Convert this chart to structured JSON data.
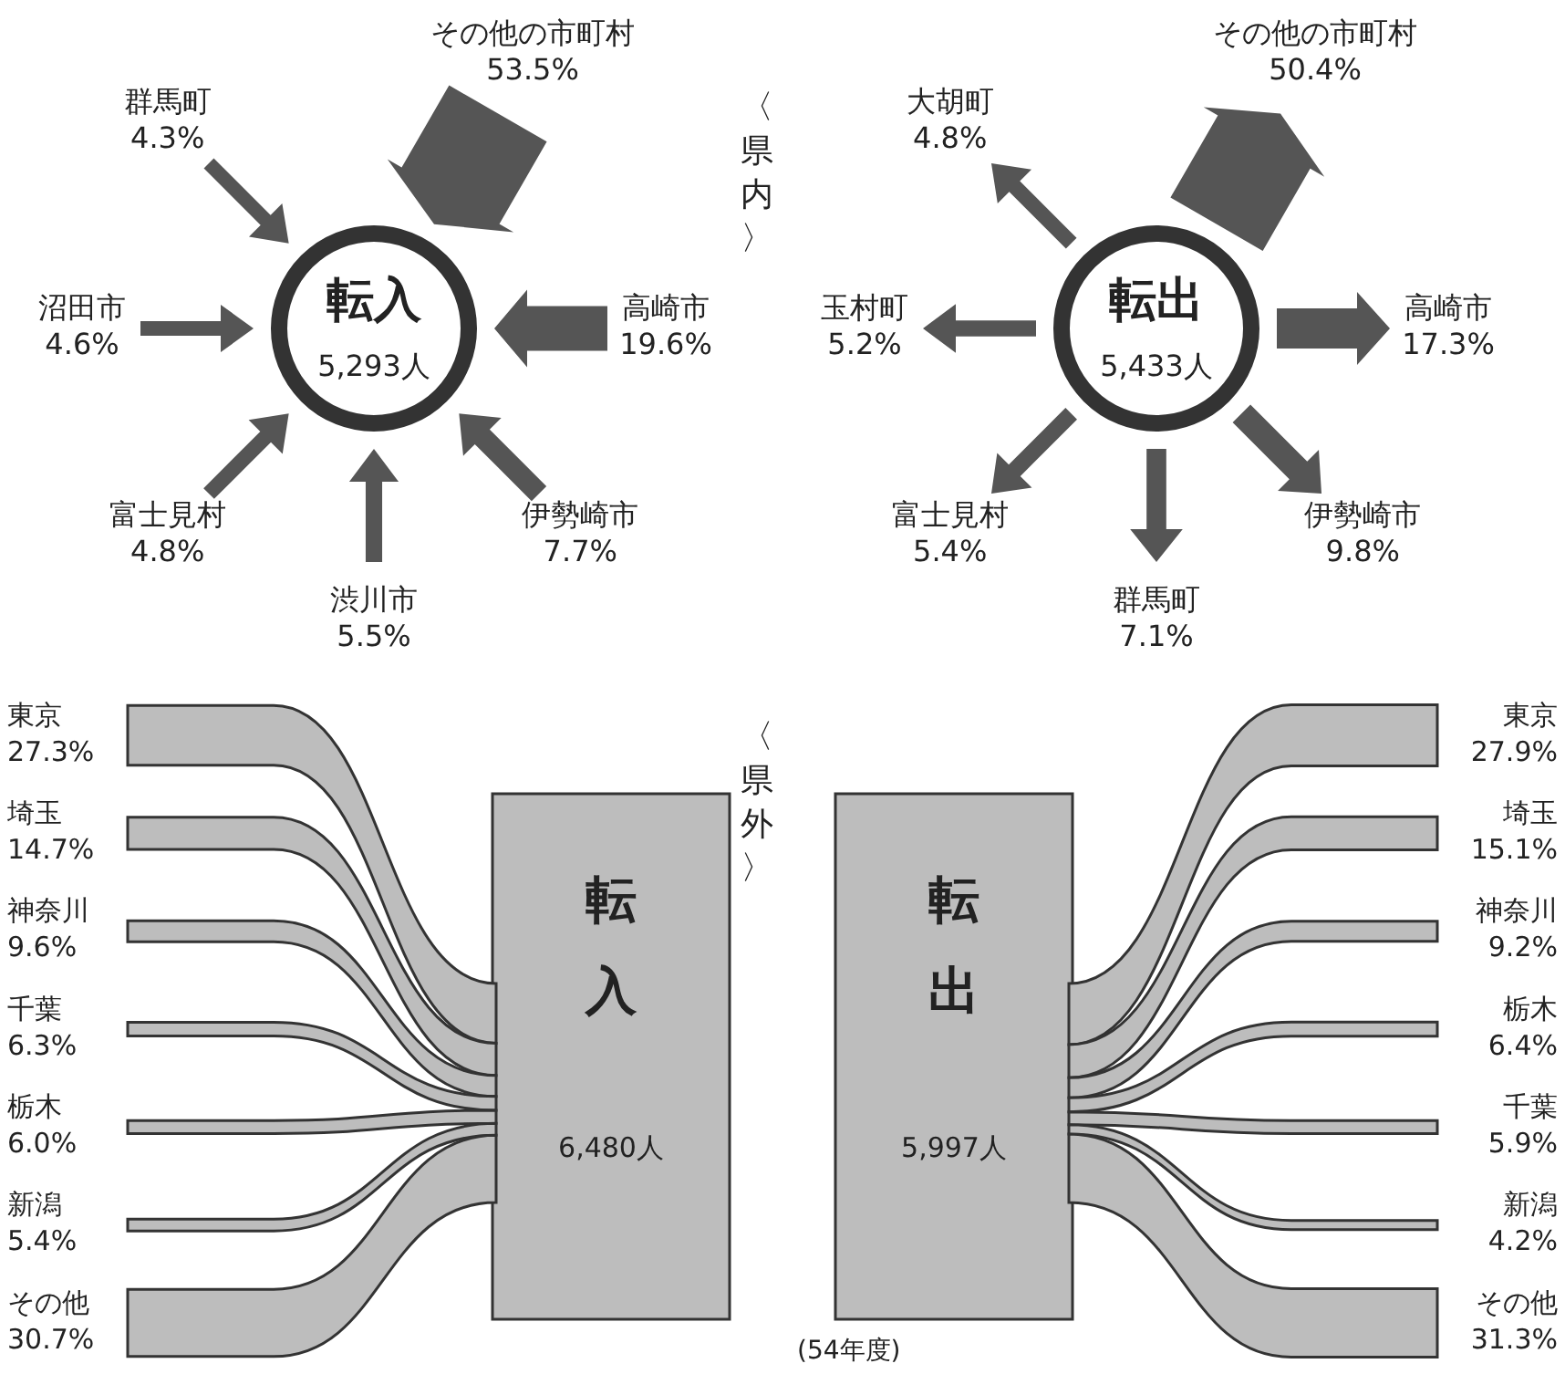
{
  "chart_data": [
    {
      "type": "other",
      "title": "転入",
      "categories": [
        "その他の市町村",
        "高崎市",
        "伊勢崎市",
        "渋川市",
        "富士見村",
        "沼田市",
        "群馬町"
      ],
      "values": [
        53.5,
        19.6,
        7.7,
        5.5,
        4.8,
        4.6,
        4.3
      ],
      "value_labels": [
        "53.5%",
        "19.6%",
        "7.7%",
        "5.5%",
        "4.8%",
        "4.6%",
        "4.3%"
      ],
      "color": "#555555",
      "annotations": [
        "5,293人",
        "〈県内〉"
      ]
    },
    {
      "type": "other",
      "title": "転出",
      "categories": [
        "その他の市町村",
        "高崎市",
        "伊勢崎市",
        "群馬町",
        "富士見村",
        "玉村町",
        "大胡町"
      ],
      "values": [
        50.4,
        17.3,
        9.8,
        7.1,
        5.4,
        5.2,
        4.8
      ],
      "value_labels": [
        "50.4%",
        "17.3%",
        "9.8%",
        "7.1%",
        "5.4%",
        "5.2%",
        "4.8%"
      ],
      "color": "#555555",
      "annotations": [
        "5,433人"
      ]
    },
    {
      "type": "other",
      "title": "転入",
      "categories": [
        "東京",
        "埼玉",
        "神奈川",
        "千葉",
        "栃木",
        "新潟",
        "その他"
      ],
      "values": [
        27.3,
        14.7,
        9.6,
        6.3,
        6.0,
        5.4,
        30.7
      ],
      "value_labels": [
        "27.3%",
        "14.7%",
        "9.6%",
        "6.3%",
        "6.0%",
        "5.4%",
        "30.7%"
      ],
      "color": "#bdbdbd",
      "annotations": [
        "6,480人",
        "〈県外〉"
      ]
    },
    {
      "type": "other",
      "title": "転出",
      "categories": [
        "東京",
        "埼玉",
        "神奈川",
        "栃木",
        "千葉",
        "新潟",
        "その他"
      ],
      "values": [
        27.9,
        15.1,
        9.2,
        6.4,
        5.9,
        4.2,
        31.3
      ],
      "value_labels": [
        "27.9%",
        "15.1%",
        "9.2%",
        "6.4%",
        "5.9%",
        "4.2%",
        "31.3%"
      ],
      "color": "#bdbdbd",
      "annotations": [
        "5,997人",
        "(54年度)"
      ]
    }
  ]
}
